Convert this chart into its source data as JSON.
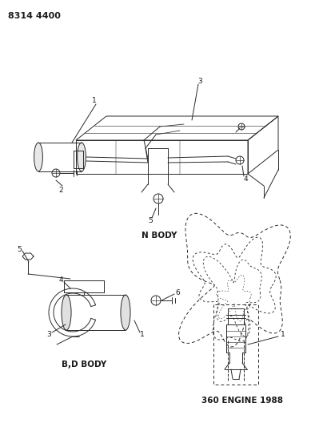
{
  "title": "8314 4400",
  "background_color": "#ffffff",
  "line_color": "#2a2a2a",
  "text_color": "#1a1a1a",
  "labels": {
    "n_body": "N BODY",
    "bd_body": "B,D BODY",
    "engine": "360 ENGINE 1988"
  },
  "figsize": [
    3.99,
    5.33
  ],
  "dpi": 100
}
